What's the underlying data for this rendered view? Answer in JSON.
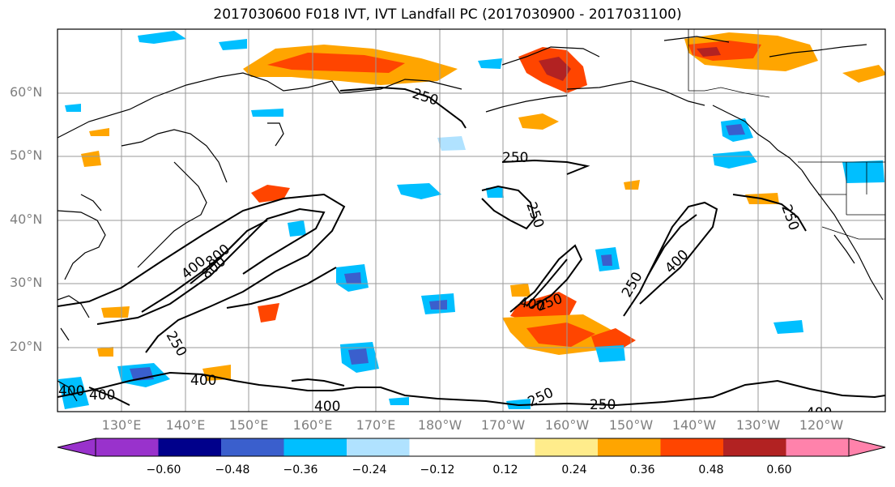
{
  "title": "2017030600 F018 IVT, IVT Landfall PC (2017030900 - 2017031100)",
  "lat_labels": [
    "60°N",
    "50°N",
    "40°N",
    "30°N",
    "20°N"
  ],
  "lon_labels": [
    "130°E",
    "140°E",
    "150°E",
    "160°E",
    "170°E",
    "180°W",
    "170°W",
    "160°W",
    "150°W",
    "140°W",
    "130°W",
    "120°W"
  ],
  "contour_labels": [
    "250",
    "250",
    "250",
    "250",
    "250",
    "250",
    "250",
    "250",
    "400",
    "400",
    "400",
    "400",
    "400",
    "400",
    "400",
    "400",
    "800",
    "800",
    "250",
    "400"
  ],
  "colorbar": {
    "colors": [
      "#9932cc",
      "#00008b",
      "#3a5fcd",
      "#00bfff",
      "#b0e2ff",
      "#ffffff",
      "#ffffff",
      "#ffec8b",
      "#ffa500",
      "#ff4500",
      "#b22222",
      "#ff82ab"
    ],
    "tick_labels": [
      "−0.60",
      "−0.48",
      "−0.36",
      "−0.24",
      "−0.12",
      "0.12",
      "0.24",
      "0.36",
      "0.48",
      "0.60"
    ]
  }
}
